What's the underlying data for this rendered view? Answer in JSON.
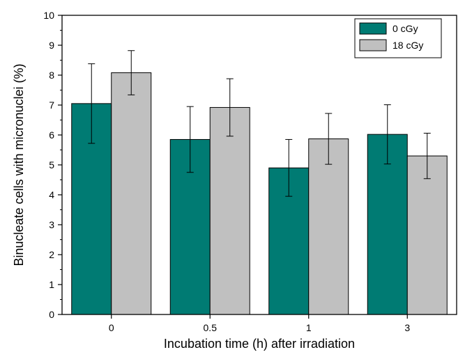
{
  "chart_data": {
    "type": "bar",
    "categories": [
      "0",
      "0.5",
      "1",
      "3"
    ],
    "series": [
      {
        "name": "0 cGy",
        "color": "#007b73",
        "values": [
          7.05,
          5.85,
          4.9,
          6.02
        ],
        "errors": [
          1.33,
          1.1,
          0.95,
          0.99
        ]
      },
      {
        "name": "18 cGy",
        "color": "#c0c0c0",
        "values": [
          8.08,
          6.92,
          5.87,
          5.3
        ],
        "errors": [
          0.74,
          0.96,
          0.85,
          0.76
        ]
      }
    ],
    "xlabel": "Incubation time (h) after irradiation",
    "ylabel": "Binucleate cells with micronuclei (%)",
    "ylim": [
      0,
      10
    ],
    "yticks": [
      "0",
      "1",
      "2",
      "3",
      "4",
      "5",
      "6",
      "7",
      "8",
      "9",
      "10"
    ],
    "legend_position": "top-right",
    "grid": false
  }
}
